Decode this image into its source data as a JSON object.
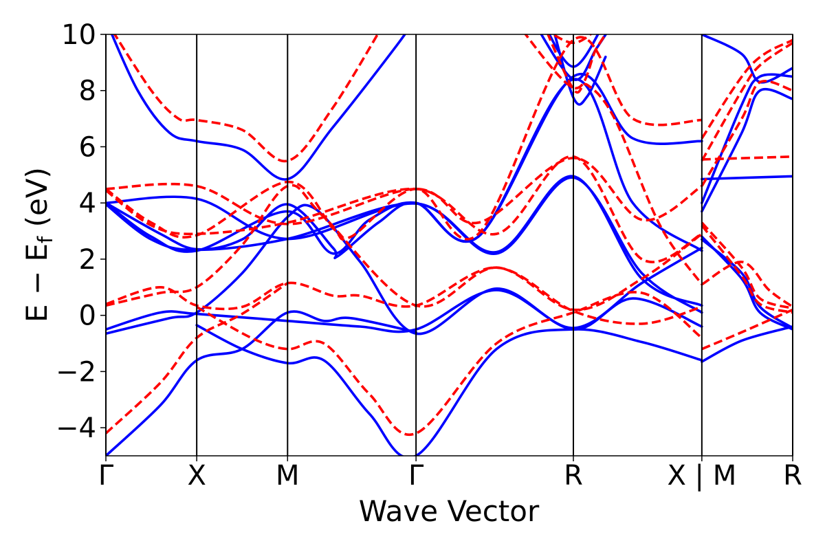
{
  "chart_data": {
    "type": "line",
    "title": "",
    "xlabel": "Wave Vector",
    "ylabel": "E − E",
    "ylabel_sub": "f",
    "ylabel_unit": " (eV)",
    "ylim": [
      -5,
      10
    ],
    "yticks": [
      {
        "value": 10,
        "label": "10"
      },
      {
        "value": 8,
        "label": "8"
      },
      {
        "value": 6,
        "label": "6"
      },
      {
        "value": 4,
        "label": "4"
      },
      {
        "value": 2,
        "label": "2"
      },
      {
        "value": 0,
        "label": "0"
      },
      {
        "value": -2,
        "label": "−2"
      },
      {
        "value": -4,
        "label": "−4"
      }
    ],
    "xlim": [
      0,
      7.5
    ],
    "high_symmetry_points": [
      {
        "x": 0,
        "label": "Γ"
      },
      {
        "x": 1,
        "label": "X"
      },
      {
        "x": 2,
        "label": "M"
      },
      {
        "x": 3.414,
        "label": "Γ"
      },
      {
        "x": 5.146,
        "label": "R"
      },
      {
        "x": 6.56,
        "label": "X | M"
      },
      {
        "x": 7.56,
        "label": "R"
      }
    ],
    "colors": {
      "blue": "#0000ff",
      "red": "#ff0000"
    },
    "series": [
      {
        "color": "blue",
        "style": "solid",
        "points": [
          [
            0,
            10.5
          ],
          [
            0.35,
            8
          ],
          [
            0.7,
            6.5
          ],
          [
            1,
            6.2
          ],
          [
            1.5,
            5.9
          ],
          [
            2,
            4.85
          ],
          [
            2.5,
            6.7
          ],
          [
            3.2,
            9.6
          ],
          [
            3.414,
            10.6
          ]
        ]
      },
      {
        "color": "blue",
        "style": "solid",
        "points": [
          [
            0,
            4
          ],
          [
            1,
            4.15
          ],
          [
            2,
            2.72
          ],
          [
            3.414,
            3.98
          ],
          [
            4.3,
            2.2
          ],
          [
            5.146,
            4.9
          ],
          [
            5.9,
            1.5
          ],
          [
            6.56,
            0.1
          ]
        ]
      },
      {
        "color": "blue",
        "style": "solid",
        "points": [
          [
            0,
            3.95
          ],
          [
            0.5,
            2.7
          ],
          [
            1,
            2.33
          ],
          [
            2,
            2.72
          ],
          [
            3.414,
            3.98
          ],
          [
            4.3,
            2.25
          ],
          [
            5.146,
            4.95
          ],
          [
            5.9,
            1.3
          ],
          [
            6.56,
            0.35
          ]
        ]
      },
      {
        "color": "blue",
        "style": "solid",
        "points": [
          [
            0,
            4
          ],
          [
            0.5,
            2.8
          ],
          [
            1,
            2.3
          ],
          [
            2,
            3.7
          ],
          [
            2.5,
            2.2
          ],
          [
            2.9,
            3.4
          ],
          [
            3.414,
            4
          ],
          [
            4.1,
            2.8
          ],
          [
            5.146,
            8.5
          ],
          [
            5.8,
            6.3
          ],
          [
            6.56,
            6.2
          ]
        ]
      },
      {
        "color": "blue",
        "style": "solid",
        "points": [
          [
            0,
            4
          ],
          [
            0.6,
            2.9
          ],
          [
            1,
            2.35
          ],
          [
            1.5,
            2.7
          ],
          [
            2,
            3.95
          ],
          [
            2.5,
            2.4
          ],
          [
            2.55,
            2.1
          ],
          [
            3,
            3.3
          ],
          [
            3.414,
            4
          ],
          [
            4.1,
            2.8
          ],
          [
            5.146,
            8.4
          ],
          [
            5.8,
            4
          ],
          [
            6.56,
            2.3
          ]
        ]
      },
      {
        "color": "blue",
        "style": "solid",
        "points": [
          [
            0,
            -0.5
          ],
          [
            0.6,
            0.1
          ],
          [
            1,
            0.05
          ],
          [
            2,
            -0.2
          ],
          [
            2.8,
            -0.4
          ],
          [
            3.414,
            -0.5
          ],
          [
            4.3,
            0.9
          ],
          [
            5.146,
            -0.5
          ],
          [
            5.8,
            0.6
          ],
          [
            6.56,
            -0.4
          ]
        ]
      },
      {
        "color": "blue",
        "style": "solid",
        "points": [
          [
            0,
            -0.65
          ],
          [
            0.7,
            -0.1
          ],
          [
            1,
            0.1
          ],
          [
            1.5,
            1.5
          ],
          [
            2,
            3.5
          ],
          [
            2.3,
            3.8
          ],
          [
            2.8,
            1.9
          ],
          [
            3.414,
            -0.65
          ],
          [
            4.3,
            0.95
          ],
          [
            5.146,
            -0.45
          ],
          [
            5.9,
            1.15
          ],
          [
            6.56,
            2.4
          ]
        ]
      },
      {
        "color": "blue",
        "style": "solid",
        "points": [
          [
            0,
            -5
          ],
          [
            0.6,
            -3.2
          ],
          [
            1,
            -1.6
          ],
          [
            1.5,
            -1.2
          ],
          [
            2,
            0.1
          ],
          [
            2.4,
            -0.2
          ],
          [
            2.7,
            -0.1
          ],
          [
            3.414,
            -0.6
          ]
        ]
      },
      {
        "color": "blue",
        "style": "solid",
        "points": [
          [
            1,
            -0.35
          ],
          [
            1.5,
            -1.2
          ],
          [
            2,
            -1.7
          ],
          [
            2.4,
            -1.6
          ],
          [
            2.9,
            -3.5
          ],
          [
            3.414,
            -5
          ],
          [
            4.3,
            -1.2
          ],
          [
            5.146,
            -0.5
          ],
          [
            5.9,
            -0.95
          ],
          [
            6.56,
            -1.6
          ]
        ]
      },
      {
        "color": "blue",
        "style": "solid",
        "points": [
          [
            4.8,
            10.5
          ],
          [
            5.146,
            8.85
          ],
          [
            5.5,
            10.5
          ]
        ]
      },
      {
        "color": "blue",
        "style": "solid",
        "points": [
          [
            4.7,
            10.5
          ],
          [
            5.146,
            8.4
          ],
          [
            5.4,
            9.5
          ],
          [
            5.6,
            10.5
          ]
        ]
      },
      {
        "color": "blue",
        "style": "solid",
        "points": [
          [
            4.9,
            10.5
          ],
          [
            5.146,
            7.75
          ],
          [
            5.3,
            7.8
          ],
          [
            5.5,
            9.2
          ]
        ]
      },
      {
        "color": "blue",
        "style": "solid",
        "points": [
          [
            6.56,
            4.85
          ],
          [
            7.56,
            4.95
          ]
        ]
      },
      {
        "color": "blue",
        "style": "solid",
        "points": [
          [
            6.56,
            10
          ],
          [
            7,
            9.3
          ],
          [
            7.2,
            8.3
          ],
          [
            7.56,
            8.8
          ]
        ]
      },
      {
        "color": "blue",
        "style": "solid",
        "points": [
          [
            6.56,
            4
          ],
          [
            7,
            7.5
          ],
          [
            7.2,
            8.5
          ],
          [
            7.56,
            8.5
          ]
        ]
      },
      {
        "color": "blue",
        "style": "solid",
        "points": [
          [
            6.56,
            3.7
          ],
          [
            7,
            6.5
          ],
          [
            7.2,
            8
          ],
          [
            7.56,
            7.7
          ]
        ]
      },
      {
        "color": "blue",
        "style": "solid",
        "points": [
          [
            6.56,
            2.7
          ],
          [
            7,
            1.5
          ],
          [
            7.2,
            0.3
          ],
          [
            7.56,
            -0.45
          ]
        ]
      },
      {
        "color": "blue",
        "style": "solid",
        "points": [
          [
            6.56,
            2.8
          ],
          [
            7,
            1.3
          ],
          [
            7.2,
            0.1
          ],
          [
            7.56,
            -0.5
          ]
        ]
      },
      {
        "color": "blue",
        "style": "solid",
        "points": [
          [
            6.56,
            -1.65
          ],
          [
            7,
            -0.9
          ],
          [
            7.56,
            -0.4
          ]
        ]
      },
      {
        "color": "red",
        "style": "dashed",
        "points": [
          [
            0,
            10.5
          ],
          [
            0.5,
            8
          ],
          [
            0.8,
            7
          ],
          [
            1,
            6.95
          ],
          [
            1.5,
            6.6
          ],
          [
            2,
            5.5
          ],
          [
            2.5,
            7.4
          ],
          [
            3.1,
            10.6
          ]
        ]
      },
      {
        "color": "red",
        "style": "dashed",
        "points": [
          [
            0,
            4.5
          ],
          [
            1,
            4.6
          ],
          [
            2,
            3.25
          ],
          [
            3.414,
            4.5
          ],
          [
            4.1,
            3.3
          ],
          [
            5.146,
            5.6
          ],
          [
            5.9,
            3.4
          ],
          [
            6.56,
            4.6
          ]
        ]
      },
      {
        "color": "red",
        "style": "dashed",
        "points": [
          [
            0,
            4.45
          ],
          [
            0.5,
            3.2
          ],
          [
            1,
            2.9
          ],
          [
            2,
            3.3
          ],
          [
            3.414,
            4.5
          ],
          [
            4.3,
            2.9
          ],
          [
            5.146,
            5.65
          ],
          [
            5.9,
            2
          ],
          [
            6.56,
            2.9
          ]
        ]
      },
      {
        "color": "red",
        "style": "dashed",
        "points": [
          [
            0,
            4.5
          ],
          [
            0.5,
            3.3
          ],
          [
            1,
            2.85
          ],
          [
            2,
            4.75
          ],
          [
            2.5,
            3.1
          ],
          [
            2.7,
            2.8
          ],
          [
            3.414,
            4.5
          ],
          [
            4.1,
            2.9
          ],
          [
            5.146,
            9.8
          ],
          [
            5.8,
            7
          ],
          [
            6.56,
            6.95
          ]
        ]
      },
      {
        "color": "red",
        "style": "dashed",
        "points": [
          [
            0,
            0.35
          ],
          [
            0.6,
            0.8
          ],
          [
            1,
            1
          ],
          [
            1.5,
            2.5
          ],
          [
            2,
            4.6
          ],
          [
            2.4,
            3.5
          ],
          [
            3.414,
            0.35
          ],
          [
            4.3,
            1.7
          ],
          [
            5.146,
            0.2
          ],
          [
            5.9,
            1.3
          ],
          [
            6.56,
            2.9
          ]
        ]
      },
      {
        "color": "red",
        "style": "dashed",
        "points": [
          [
            0,
            0.4
          ],
          [
            0.6,
            1
          ],
          [
            1,
            0.35
          ],
          [
            1.5,
            0.3
          ],
          [
            2,
            1.15
          ],
          [
            2.5,
            0.7
          ],
          [
            2.8,
            0.7
          ],
          [
            3.414,
            0.35
          ],
          [
            4.3,
            1.7
          ],
          [
            5.146,
            0.15
          ],
          [
            5.9,
            -0.3
          ],
          [
            6.56,
            0.3
          ]
        ]
      },
      {
        "color": "red",
        "style": "dashed",
        "points": [
          [
            0,
            -4.2
          ],
          [
            0.6,
            -2.4
          ],
          [
            1,
            -0.8
          ],
          [
            1.5,
            0.05
          ],
          [
            2,
            1.15
          ]
        ]
      },
      {
        "color": "red",
        "style": "dashed",
        "points": [
          [
            1,
            0.3
          ],
          [
            1.6,
            -0.8
          ],
          [
            2,
            -1.2
          ],
          [
            2.4,
            -1
          ],
          [
            2.9,
            -2.8
          ],
          [
            3.414,
            -4.2
          ],
          [
            4.3,
            -1
          ],
          [
            5.146,
            0.1
          ],
          [
            5.9,
            0.8
          ],
          [
            6.56,
            -0.8
          ]
        ]
      },
      {
        "color": "red",
        "style": "dashed",
        "points": [
          [
            4.5,
            10.5
          ],
          [
            5.146,
            8.1
          ],
          [
            5.4,
            9.5
          ],
          [
            5.6,
            10.5
          ]
        ]
      },
      {
        "color": "red",
        "style": "dashed",
        "points": [
          [
            4.7,
            10.5
          ],
          [
            5.146,
            9.7
          ],
          [
            5.5,
            10.5
          ]
        ]
      },
      {
        "color": "red",
        "style": "dashed",
        "points": [
          [
            4.8,
            10.5
          ],
          [
            5.146,
            8.05
          ],
          [
            5.3,
            8.2
          ],
          [
            5.6,
            7
          ],
          [
            6.1,
            3.2
          ],
          [
            6.56,
            1.1
          ]
        ]
      },
      {
        "color": "red",
        "style": "dashed",
        "points": [
          [
            6.56,
            5.55
          ],
          [
            7.56,
            5.65
          ]
        ]
      },
      {
        "color": "red",
        "style": "dashed",
        "points": [
          [
            6.56,
            6.3
          ],
          [
            7.1,
            8.9
          ],
          [
            7.56,
            9.8
          ]
        ]
      },
      {
        "color": "red",
        "style": "dashed",
        "points": [
          [
            6.56,
            5.5
          ],
          [
            7,
            8
          ],
          [
            7.2,
            8.9
          ],
          [
            7.56,
            9.7
          ]
        ]
      },
      {
        "color": "red",
        "style": "dashed",
        "points": [
          [
            6.56,
            4.6
          ],
          [
            7,
            7
          ],
          [
            7.2,
            8.3
          ],
          [
            7.56,
            8
          ]
        ]
      },
      {
        "color": "red",
        "style": "dashed",
        "points": [
          [
            6.56,
            3.3
          ],
          [
            7,
            1.7
          ],
          [
            7.2,
            0.6
          ],
          [
            7.56,
            0.25
          ]
        ]
      },
      {
        "color": "red",
        "style": "dashed",
        "points": [
          [
            6.56,
            3.2
          ],
          [
            7,
            1.4
          ],
          [
            7.2,
            0.4
          ],
          [
            7.56,
            0.1
          ]
        ]
      },
      {
        "color": "red",
        "style": "dashed",
        "points": [
          [
            6.56,
            1.1
          ],
          [
            7,
            1.9
          ],
          [
            7.3,
            0.9
          ],
          [
            7.56,
            0.3
          ]
        ]
      },
      {
        "color": "red",
        "style": "dashed",
        "points": [
          [
            6.56,
            -1.2
          ],
          [
            7,
            -0.6
          ],
          [
            7.56,
            0.2
          ]
        ]
      }
    ]
  }
}
